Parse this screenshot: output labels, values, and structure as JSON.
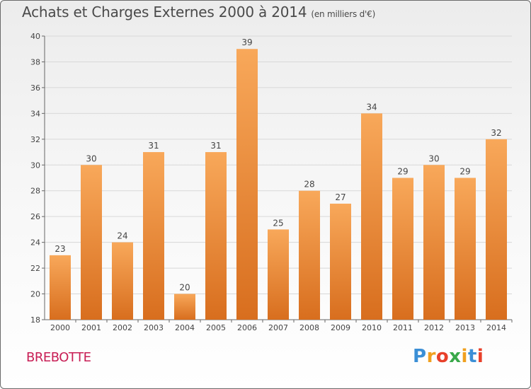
{
  "chart_data": {
    "type": "bar",
    "title": "Achats et Charges Externes 2000 à 2014",
    "subtitle": "(en milliers d'€)",
    "categories": [
      "2000",
      "2001",
      "2002",
      "2003",
      "2004",
      "2005",
      "2006",
      "2007",
      "2008",
      "2009",
      "2010",
      "2011",
      "2012",
      "2013",
      "2014"
    ],
    "values": [
      23,
      30,
      24,
      31,
      20,
      31,
      39,
      25,
      28,
      27,
      34,
      29,
      30,
      29,
      32
    ],
    "ylim": [
      18,
      40
    ],
    "yticks": [
      18,
      20,
      22,
      24,
      26,
      28,
      30,
      32,
      34,
      36,
      38,
      40
    ],
    "grid": true,
    "colors": {
      "bar_top": "#f8a85a",
      "bar_bottom": "#d86e1e",
      "grid": "#d8d8d8"
    }
  },
  "footer": {
    "commune": "BREBOTTE",
    "logo_letters": [
      "P",
      "r",
      "o",
      "x",
      "i",
      "t",
      "i"
    ],
    "logo_colors": [
      "#3b8fd6",
      "#f0a020",
      "#e8402a",
      "#3aa84a",
      "#f0a020",
      "#3b8fd6",
      "#e8402a"
    ]
  }
}
